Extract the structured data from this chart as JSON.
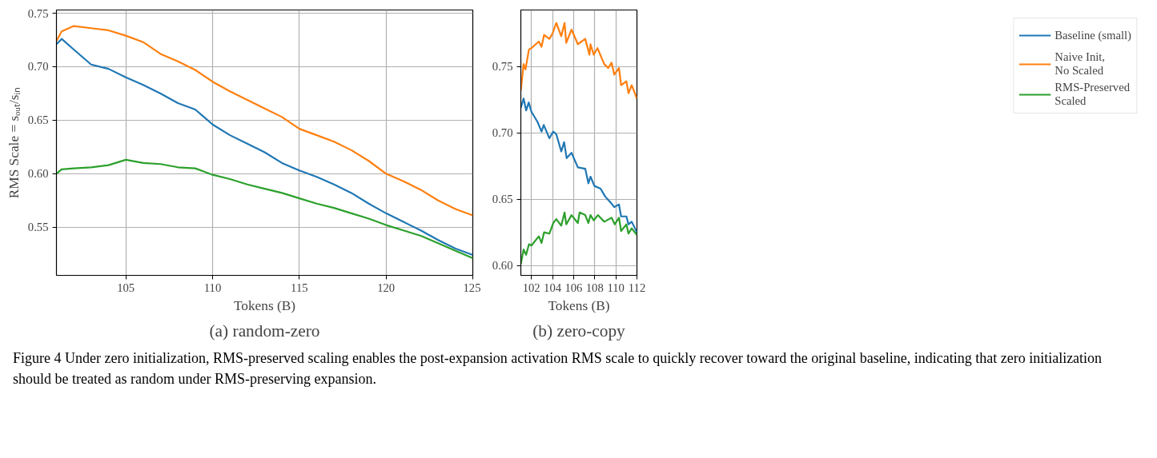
{
  "chart_data": [
    {
      "type": "line",
      "xlabel": "Tokens (B)",
      "ylabel": "RMS Scale = sₒᵤₜ/sᵢₙ",
      "annotations": [
        "(a) random-zero"
      ],
      "xlim": [
        101,
        125
      ],
      "ylim": [
        0.505,
        0.753
      ],
      "xticks": [
        105,
        110,
        115,
        120,
        125
      ],
      "yticks": [
        {
          "value": 0.55,
          "label": "0.55"
        },
        {
          "value": 0.6,
          "label": "0.60"
        },
        {
          "value": 0.65,
          "label": "0.65"
        },
        {
          "value": 0.7,
          "label": "0.70"
        },
        {
          "value": 0.75,
          "label": "0.75"
        }
      ],
      "grid": true,
      "legend": false,
      "line_style": "solid",
      "marker": "none",
      "x": [
        101,
        101.3,
        102,
        103,
        104,
        105,
        106,
        107,
        108,
        109,
        110,
        111,
        112,
        113,
        114,
        115,
        116,
        117,
        118,
        119,
        120,
        121,
        122,
        123,
        124,
        125
      ],
      "series": [
        {
          "color": "#1f77b4",
          "values": [
            0.721,
            0.726,
            0.716,
            0.702,
            0.698,
            0.69,
            0.683,
            0.675,
            0.666,
            0.66,
            0.646,
            0.636,
            0.628,
            0.62,
            0.61,
            0.603,
            0.597,
            0.59,
            0.582,
            0.572,
            0.563,
            0.555,
            0.547,
            0.538,
            0.53,
            0.524
          ]
        },
        {
          "color": "#ff7f0e",
          "values": [
            0.724,
            0.733,
            0.738,
            0.736,
            0.734,
            0.729,
            0.723,
            0.712,
            0.705,
            0.697,
            0.686,
            0.677,
            0.669,
            0.661,
            0.653,
            0.642,
            0.636,
            0.63,
            0.622,
            0.612,
            0.6,
            0.593,
            0.585,
            0.575,
            0.567,
            0.561
          ]
        },
        {
          "color": "#2ca02c",
          "values": [
            0.6,
            0.604,
            0.605,
            0.606,
            0.608,
            0.613,
            0.61,
            0.609,
            0.606,
            0.605,
            0.599,
            0.595,
            0.59,
            0.586,
            0.582,
            0.577,
            0.572,
            0.568,
            0.563,
            0.558,
            0.552,
            0.547,
            0.542,
            0.535,
            0.528,
            0.521
          ]
        }
      ]
    },
    {
      "type": "line",
      "xlabel": "Tokens (B)",
      "annotations": [
        "(b) zero-copy",
        "Figure 4  Under zero initialization, RMS-preserved scaling enables the post-expansion activation RMS scale to quickly recover toward the original baseline, indicating that zero initialization should be treated as random under RMS-preserving expansion."
      ],
      "xlim": [
        101,
        112
      ],
      "ylim": [
        0.5925,
        0.7928
      ],
      "xticks": [
        102,
        104,
        106,
        108,
        110,
        112
      ],
      "yticks": [
        {
          "value": 0.6,
          "label": "0.60"
        },
        {
          "value": 0.65,
          "label": "0.65"
        },
        {
          "value": 0.7,
          "label": "0.70"
        },
        {
          "value": 0.75,
          "label": "0.75"
        }
      ],
      "grid": true,
      "legend": "right",
      "line_style": "solid",
      "marker": "none",
      "series": [
        {
          "name": "Baseline (small)",
          "color": "#1f77b4",
          "x": [
            101,
            101.26,
            101.5,
            101.75,
            102,
            102.6,
            102.96,
            103.17,
            103.7,
            104.07,
            104.36,
            104.83,
            105.1,
            105.34,
            105.8,
            106.4,
            107.1,
            107.4,
            107.6,
            107.97,
            108.55,
            108.99,
            109.56,
            109.85,
            110.3,
            110.5,
            111,
            111.2,
            111.5,
            112
          ],
          "values": [
            0.719,
            0.726,
            0.717,
            0.723,
            0.716,
            0.708,
            0.701,
            0.706,
            0.696,
            0.701,
            0.699,
            0.686,
            0.693,
            0.681,
            0.685,
            0.674,
            0.673,
            0.662,
            0.667,
            0.66,
            0.658,
            0.652,
            0.647,
            0.644,
            0.646,
            0.637,
            0.637,
            0.631,
            0.633,
            0.625
          ]
        },
        {
          "name": "Naive Init,\nNo Scaled",
          "color": "#ff7f0e",
          "x": [
            101,
            101.26,
            101.44,
            101.77,
            102,
            102.7,
            102.96,
            103.2,
            103.7,
            104,
            104.36,
            104.83,
            105.14,
            105.3,
            105.8,
            106.4,
            107.1,
            107.5,
            107.6,
            107.9,
            108.26,
            108.9,
            109.27,
            109.6,
            109.85,
            110.3,
            110.5,
            111,
            111.2,
            111.5,
            112
          ],
          "values": [
            0.732,
            0.752,
            0.748,
            0.763,
            0.764,
            0.769,
            0.765,
            0.774,
            0.771,
            0.775,
            0.783,
            0.773,
            0.783,
            0.768,
            0.778,
            0.767,
            0.771,
            0.759,
            0.767,
            0.759,
            0.764,
            0.752,
            0.749,
            0.753,
            0.744,
            0.749,
            0.736,
            0.739,
            0.73,
            0.736,
            0.726
          ]
        },
        {
          "name": "RMS-Preserved\nScaled",
          "color": "#2ca02c",
          "x": [
            101,
            101.26,
            101.5,
            101.77,
            102,
            102.7,
            102.96,
            103.2,
            103.7,
            104.07,
            104.36,
            104.83,
            105.14,
            105.3,
            105.8,
            106.4,
            106.57,
            107.1,
            107.4,
            107.6,
            107.9,
            108.3,
            108.9,
            109.6,
            109.9,
            110.3,
            110.5,
            111,
            111.2,
            111.5,
            112
          ],
          "values": [
            0.601,
            0.612,
            0.608,
            0.616,
            0.615,
            0.622,
            0.617,
            0.625,
            0.624,
            0.632,
            0.635,
            0.63,
            0.64,
            0.631,
            0.638,
            0.632,
            0.64,
            0.638,
            0.632,
            0.638,
            0.634,
            0.638,
            0.633,
            0.636,
            0.631,
            0.636,
            0.626,
            0.631,
            0.624,
            0.628,
            0.623
          ]
        }
      ]
    }
  ]
}
